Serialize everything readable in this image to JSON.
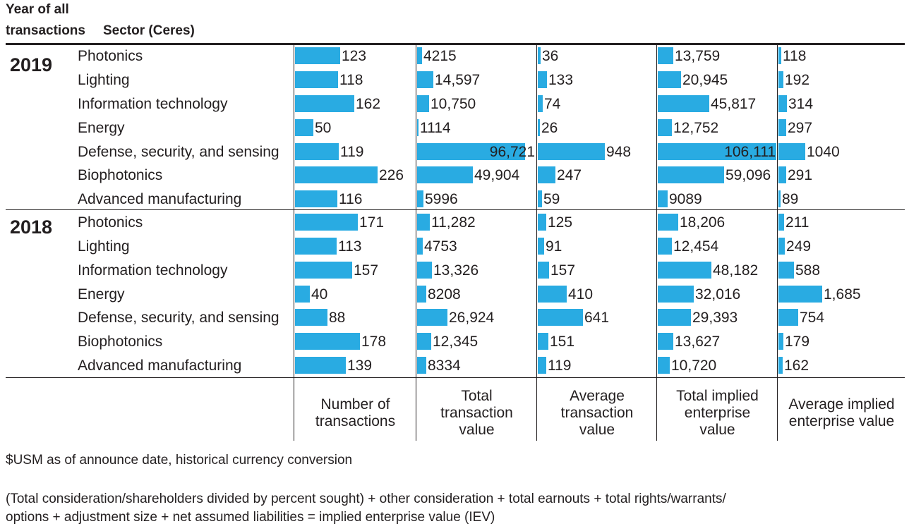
{
  "header": {
    "line1": "Year of all",
    "line2": "transactions",
    "sector": "Sector (Ceres)"
  },
  "chart_data": {
    "type": "bar",
    "orientation": "horizontal",
    "title": "",
    "categories": [
      "Photonics",
      "Lighting",
      "Information technology",
      "Energy",
      "Defense, security, and sensing",
      "Biophotonics",
      "Advanced manufacturing"
    ],
    "groups": [
      {
        "year": "2019",
        "series": [
          {
            "name": "Number of transactions",
            "values": [
              123,
              118,
              162,
              50,
              119,
              226,
              116
            ],
            "labels": [
              "123",
              "118",
              "162",
              "50",
              "119",
              "226",
              "116"
            ]
          },
          {
            "name": "Total transaction value",
            "values": [
              4215,
              14597,
              10750,
              1114,
              96721,
              49904,
              5996
            ],
            "labels": [
              "4215",
              "14,597",
              "10,750",
              "1114",
              "96,721",
              "49,904",
              "5996"
            ]
          },
          {
            "name": "Average transaction value",
            "values": [
              36,
              133,
              74,
              26,
              948,
              247,
              59
            ],
            "labels": [
              "36",
              "133",
              "74",
              "26",
              "948",
              "247",
              "59"
            ]
          },
          {
            "name": "Total implied enterprise value",
            "values": [
              13759,
              20945,
              45817,
              12752,
              106111,
              59096,
              9089
            ],
            "labels": [
              "13,759",
              "20,945",
              "45,817",
              "12,752",
              "106,111",
              "59,096",
              "9089"
            ]
          },
          {
            "name": "Average implied enterprise value",
            "values": [
              118,
              192,
              314,
              297,
              1040,
              291,
              89
            ],
            "labels": [
              "118",
              "192",
              "314",
              "297",
              "1040",
              "291",
              "89"
            ]
          }
        ]
      },
      {
        "year": "2018",
        "series": [
          {
            "name": "Number of transactions",
            "values": [
              171,
              113,
              157,
              40,
              88,
              178,
              139
            ],
            "labels": [
              "171",
              "113",
              "157",
              "40",
              "88",
              "178",
              "139"
            ]
          },
          {
            "name": "Total transaction value",
            "values": [
              11282,
              4753,
              13326,
              8208,
              26924,
              12345,
              8334
            ],
            "labels": [
              "11,282",
              "4753",
              "13,326",
              "8208",
              "26,924",
              "12,345",
              "8334"
            ]
          },
          {
            "name": "Average transaction value",
            "values": [
              125,
              91,
              157,
              410,
              641,
              151,
              119
            ],
            "labels": [
              "125",
              "91",
              "157",
              "410",
              "641",
              "151",
              "119"
            ]
          },
          {
            "name": "Total implied enterprise value",
            "values": [
              18206,
              12454,
              48182,
              32016,
              29393,
              13627,
              10720
            ],
            "labels": [
              "18,206",
              "12,454",
              "48,182",
              "32,016",
              "29,393",
              "13,627",
              "10,720"
            ]
          },
          {
            "name": "Average implied enterprise value",
            "values": [
              211,
              249,
              588,
              1685,
              754,
              179,
              162
            ],
            "labels": [
              "211",
              "249",
              "588",
              "1,685",
              "754",
              "179",
              "162"
            ]
          }
        ]
      }
    ],
    "column_labels": [
      "Number of\ntransactions",
      "Total\ntransaction\nvalue",
      "Average\ntransaction\nvalue",
      "Total implied\nenterprise\nvalue",
      "Average implied\nenterprise value"
    ],
    "xlim": [
      [
        0,
        226
      ],
      [
        0,
        106111
      ],
      [
        0,
        1685
      ],
      [
        0,
        106111
      ],
      [
        0,
        1685
      ]
    ],
    "bar_color": "#29abe2"
  },
  "notes": {
    "currency": "$USM as of announce date, historical currency conversion",
    "formula_line1": "(Total consideration/shareholders divided by percent sought) + other consideration + total earnouts + total rights/warrants/",
    "formula_line2": "options + adjustment size + net assumed liabilities = implied enterprise value (IEV)"
  }
}
